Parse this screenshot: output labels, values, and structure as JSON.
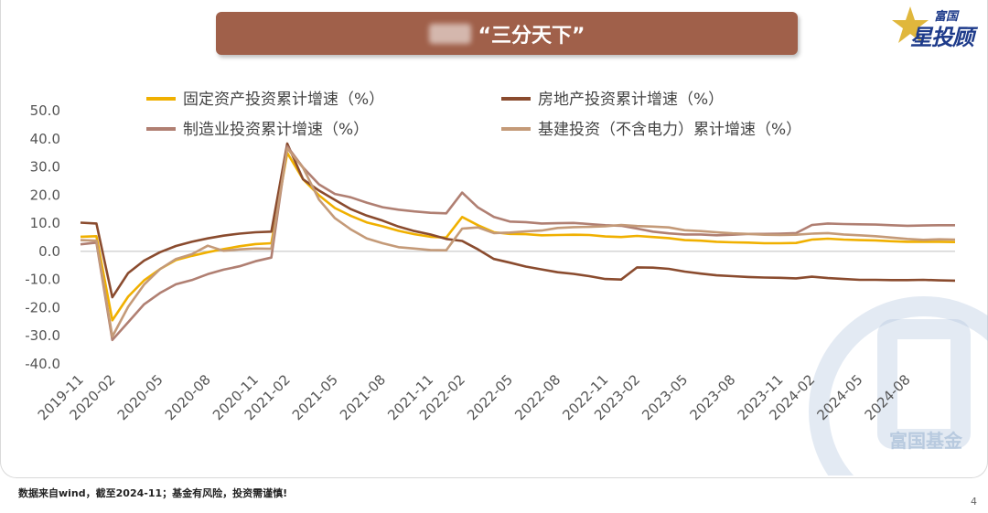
{
  "header": {
    "title": "“三分天下”"
  },
  "logo": {
    "small": "富国",
    "big": "星投顾",
    "icon": "star-icon"
  },
  "watermark": {
    "text": "富国基金",
    "icon": "coin-logo-icon"
  },
  "footer": {
    "note": "数据来自wind，截至2024-11；基金有风险，投资需谨慎!",
    "page": "4"
  },
  "colors": {
    "background": "#ffffff",
    "title_bar": "#a0604a",
    "brand": "#1d3a8a"
  },
  "chart_data": {
    "type": "line",
    "x": [
      "2019-11",
      "2019-12",
      "2020-02",
      "2020-03",
      "2020-04",
      "2020-05",
      "2020-06",
      "2020-07",
      "2020-08",
      "2020-09",
      "2020-10",
      "2020-11",
      "2020-12",
      "2021-02",
      "2021-03",
      "2021-04",
      "2021-05",
      "2021-06",
      "2021-07",
      "2021-08",
      "2021-09",
      "2021-10",
      "2021-11",
      "2021-12",
      "2022-02",
      "2022-03",
      "2022-04",
      "2022-05",
      "2022-06",
      "2022-07",
      "2022-08",
      "2022-09",
      "2022-10",
      "2022-11",
      "2022-12",
      "2023-02",
      "2023-03",
      "2023-04",
      "2023-05",
      "2023-06",
      "2023-07",
      "2023-08",
      "2023-09",
      "2023-10",
      "2023-11",
      "2023-12",
      "2024-02",
      "2024-03",
      "2024-04",
      "2024-05",
      "2024-06",
      "2024-07",
      "2024-08",
      "2024-09",
      "2024-10",
      "2024-11"
    ],
    "tick_labels": [
      "2019-11",
      "2020-02",
      "2020-05",
      "2020-08",
      "2020-11",
      "2021-02",
      "2021-05",
      "2021-08",
      "2021-11",
      "2022-02",
      "2022-05",
      "2022-08",
      "2022-11",
      "2023-02",
      "2023-05",
      "2023-08",
      "2023-11",
      "2024-02",
      "2024-05",
      "2024-08"
    ],
    "ylim": [
      -40,
      50
    ],
    "yticks": [
      "50.0",
      "40.0",
      "30.0",
      "20.0",
      "10.0",
      "0.0",
      "-10.0",
      "-20.0",
      "-30.0",
      "-40.0"
    ],
    "legend_position": "top",
    "series": [
      {
        "name": "固定资产投资累计增速（%）",
        "color": "#f0b000",
        "values": [
          5.2,
          5.4,
          -24.5,
          -16.1,
          -10.3,
          -6.3,
          -3.1,
          -1.6,
          -0.3,
          0.8,
          1.8,
          2.6,
          2.9,
          35.0,
          25.6,
          19.9,
          15.4,
          12.6,
          10.3,
          8.9,
          7.3,
          6.1,
          5.2,
          4.9,
          12.2,
          9.3,
          6.8,
          6.2,
          6.1,
          5.7,
          5.8,
          5.9,
          5.8,
          5.3,
          5.1,
          5.5,
          5.1,
          4.7,
          4.0,
          3.8,
          3.4,
          3.2,
          3.1,
          2.9,
          2.9,
          3.0,
          4.2,
          4.5,
          4.2,
          4.0,
          3.9,
          3.6,
          3.4,
          3.4,
          3.4,
          3.3
        ]
      },
      {
        "name": "房地产投资累计增速（%）",
        "color": "#8a4b2e",
        "values": [
          10.2,
          9.9,
          -16.3,
          -7.7,
          -3.3,
          -0.3,
          1.9,
          3.4,
          4.6,
          5.6,
          6.3,
          6.8,
          7.0,
          38.3,
          25.6,
          21.6,
          18.3,
          15.0,
          12.7,
          10.9,
          8.8,
          7.2,
          6.0,
          4.4,
          3.7,
          0.7,
          -2.7,
          -4.0,
          -5.4,
          -6.4,
          -7.4,
          -8.0,
          -8.8,
          -9.8,
          -10.0,
          -5.7,
          -5.8,
          -6.2,
          -7.2,
          -7.9,
          -8.5,
          -8.8,
          -9.1,
          -9.3,
          -9.4,
          -9.6,
          -9.0,
          -9.5,
          -9.8,
          -10.1,
          -10.1,
          -10.2,
          -10.2,
          -10.1,
          -10.3,
          -10.4
        ]
      },
      {
        "name": "制造业投资累计增速（%）",
        "color": "#b07f72",
        "values": [
          2.5,
          3.1,
          -31.5,
          -25.2,
          -18.8,
          -14.8,
          -11.7,
          -10.2,
          -8.1,
          -6.5,
          -5.3,
          -3.5,
          -2.2,
          37.3,
          29.8,
          23.8,
          20.4,
          19.2,
          17.3,
          15.7,
          14.8,
          14.2,
          13.7,
          13.5,
          20.9,
          15.6,
          12.2,
          10.6,
          10.4,
          9.9,
          10.0,
          10.1,
          9.7,
          9.3,
          9.1,
          8.1,
          7.0,
          6.4,
          6.0,
          6.0,
          5.7,
          5.9,
          6.2,
          6.2,
          6.3,
          6.5,
          9.4,
          9.9,
          9.7,
          9.6,
          9.5,
          9.3,
          9.1,
          9.2,
          9.3,
          9.3
        ]
      },
      {
        "name": "基建投资（不含电力）累计增速（%）",
        "color": "#c49a78",
        "values": [
          4.0,
          3.8,
          -30.3,
          -19.7,
          -11.8,
          -6.3,
          -2.7,
          -1.0,
          2.0,
          0.2,
          0.7,
          1.0,
          0.9,
          36.6,
          29.7,
          18.4,
          11.8,
          7.8,
          4.6,
          2.9,
          1.5,
          1.0,
          0.5,
          0.4,
          8.1,
          8.5,
          6.5,
          6.7,
          7.1,
          7.4,
          8.3,
          8.6,
          8.7,
          8.9,
          9.4,
          9.0,
          8.8,
          8.5,
          7.5,
          7.2,
          6.8,
          6.4,
          6.2,
          5.9,
          5.8,
          5.9,
          6.3,
          6.5,
          6.0,
          5.7,
          5.4,
          4.9,
          4.4,
          4.1,
          4.3,
          4.2
        ]
      }
    ]
  }
}
